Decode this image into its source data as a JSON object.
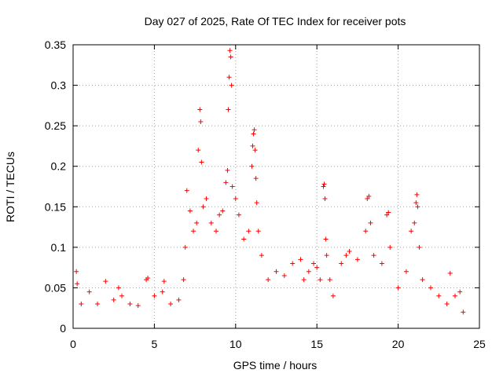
{
  "chart_data": {
    "type": "scatter",
    "title": "Day 027 of 2025, Rate Of TEC Index for receiver pots",
    "xlabel": "GPS time / hours",
    "ylabel": "ROTI / TECUs",
    "xlim": [
      0,
      25
    ],
    "ylim": [
      0,
      0.35
    ],
    "xticks": [
      "0",
      "5",
      "10",
      "15",
      "20",
      "25"
    ],
    "yticks": [
      "0",
      "0.05",
      "0.1",
      "0.15",
      "0.2",
      "0.25",
      "0.3",
      "0.35"
    ],
    "grid": true,
    "marker": "+",
    "color": "#ff0000",
    "series": [
      {
        "x": [
          0.2,
          0.25,
          0.5,
          1.0,
          1.5,
          2.0,
          2.5,
          2.8,
          3.0,
          3.5,
          4.0,
          4.5,
          4.6,
          5.0,
          5.5,
          5.6,
          6.0,
          6.5,
          6.8,
          6.9,
          7.0,
          7.2,
          7.4,
          7.6,
          7.7,
          7.8,
          7.85,
          7.9,
          8.0,
          8.2,
          8.5,
          8.8,
          9.0,
          9.2,
          9.4,
          9.5,
          9.55,
          9.6,
          9.65,
          9.7,
          9.75,
          9.8,
          10.0,
          10.2,
          10.5,
          10.8,
          11.0,
          11.05,
          11.1,
          11.15,
          11.2,
          11.25,
          11.3,
          11.4,
          11.6,
          12.0,
          12.5,
          13.0,
          13.5,
          14.0,
          14.2,
          14.5,
          14.8,
          15.0,
          15.2,
          15.4,
          15.45,
          15.5,
          15.55,
          15.6,
          15.8,
          16.0,
          16.5,
          16.8,
          17.0,
          17.5,
          18.0,
          18.1,
          18.2,
          18.3,
          18.5,
          19.0,
          19.3,
          19.4,
          19.5,
          20.0,
          20.5,
          20.8,
          21.0,
          21.1,
          21.15,
          21.2,
          21.3,
          21.5,
          22.0,
          22.5,
          23.0,
          23.2,
          23.5,
          23.8,
          24.0
        ],
        "y": [
          0.07,
          0.055,
          0.03,
          0.045,
          0.03,
          0.058,
          0.035,
          0.05,
          0.04,
          0.03,
          0.028,
          0.06,
          0.062,
          0.04,
          0.045,
          0.058,
          0.03,
          0.035,
          0.06,
          0.1,
          0.17,
          0.145,
          0.12,
          0.13,
          0.22,
          0.27,
          0.255,
          0.205,
          0.15,
          0.16,
          0.13,
          0.12,
          0.14,
          0.145,
          0.18,
          0.195,
          0.27,
          0.31,
          0.343,
          0.335,
          0.3,
          0.175,
          0.16,
          0.14,
          0.11,
          0.12,
          0.2,
          0.225,
          0.24,
          0.245,
          0.22,
          0.185,
          0.155,
          0.12,
          0.09,
          0.06,
          0.07,
          0.065,
          0.08,
          0.085,
          0.06,
          0.07,
          0.08,
          0.075,
          0.06,
          0.175,
          0.178,
          0.16,
          0.11,
          0.09,
          0.06,
          0.04,
          0.08,
          0.09,
          0.095,
          0.085,
          0.12,
          0.16,
          0.163,
          0.13,
          0.09,
          0.08,
          0.14,
          0.143,
          0.1,
          0.05,
          0.07,
          0.12,
          0.13,
          0.155,
          0.165,
          0.15,
          0.1,
          0.06,
          0.05,
          0.04,
          0.03,
          0.068,
          0.04,
          0.045,
          0.02
        ]
      }
    ]
  }
}
